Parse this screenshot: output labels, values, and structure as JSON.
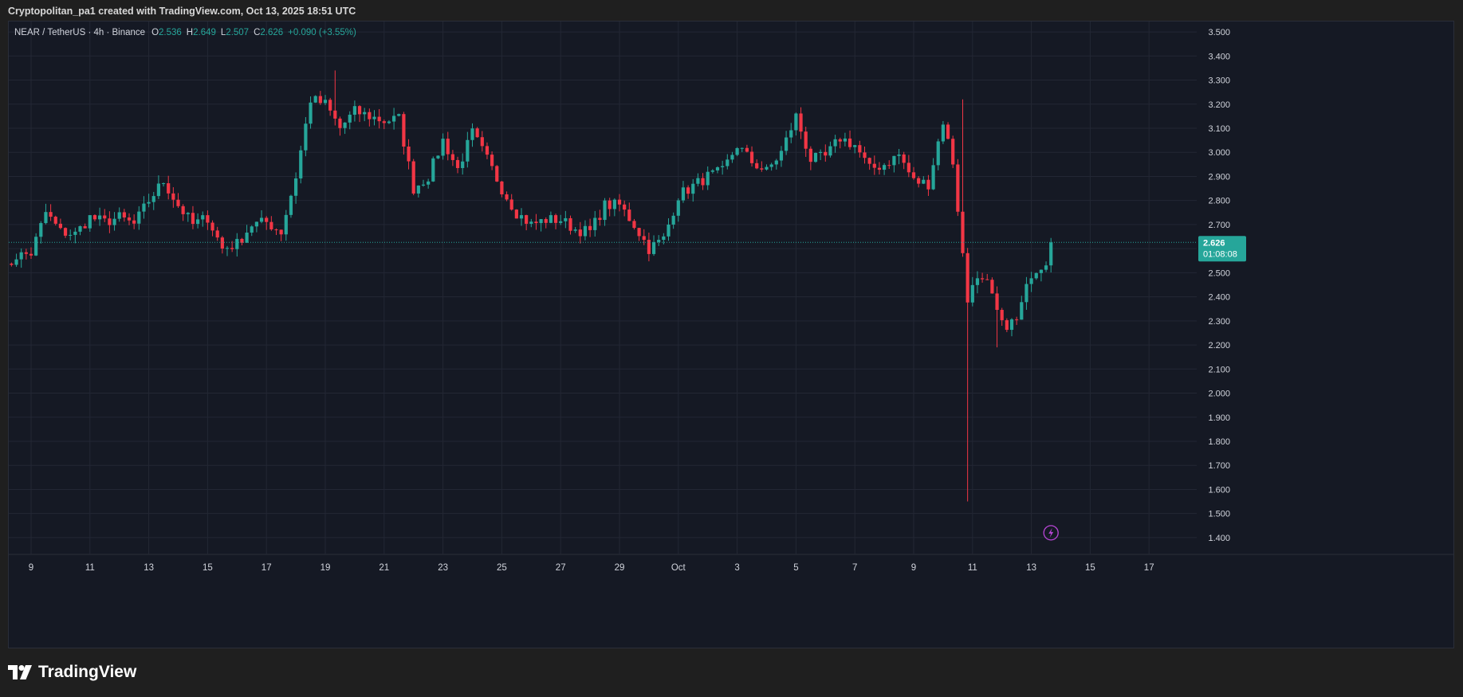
{
  "caption": "Cryptopolitan_pa1 created with TradingView.com, Oct 13, 2025 18:51 UTC",
  "legend": {
    "symbol": "NEAR / TetherUS · 4h · Binance",
    "o_label": "O",
    "o_value": "2.536",
    "h_label": "H",
    "h_value": "2.649",
    "l_label": "L",
    "l_value": "2.507",
    "c_label": "C",
    "c_value": "2.626",
    "change": "+0.090 (+3.55%)"
  },
  "price_tag": {
    "price": "2.626",
    "countdown": "01:08:08"
  },
  "brand": "TradingView",
  "colors": {
    "up": "#26a69a",
    "down": "#f23645",
    "background": "#151924",
    "grid": "#232734",
    "axis_text": "#d1d4dc",
    "lightning": "#b845d6"
  },
  "icons": [
    "tradingview-logo-icon",
    "lightning-icon"
  ],
  "chart_data": {
    "type": "candlestick",
    "title": "",
    "interval": "4h",
    "x_ticks": [
      "9",
      "11",
      "13",
      "15",
      "17",
      "19",
      "21",
      "23",
      "25",
      "27",
      "29",
      "Oct",
      "3",
      "5",
      "7",
      "9",
      "11",
      "13",
      "15",
      "17"
    ],
    "y_ticks": [
      "3.500",
      "3.400",
      "3.300",
      "3.200",
      "3.100",
      "3.000",
      "2.900",
      "2.800",
      "2.700",
      "2.600",
      "2.500",
      "2.400",
      "2.300",
      "2.200",
      "2.100",
      "2.000",
      "1.900",
      "1.800",
      "1.700",
      "1.600",
      "1.500",
      "1.400"
    ],
    "ylim": [
      1.36,
      3.53
    ],
    "x_range_days": [
      "Sep 8",
      "Oct 19"
    ],
    "last_price": 2.626,
    "grid": true,
    "anchors": [
      [
        "Sep 8 00:00",
        2.49
      ],
      [
        "Sep 8 12:00",
        2.57
      ],
      [
        "Sep 9 00:00",
        2.58
      ],
      [
        "Sep 9 12:00",
        2.75
      ],
      [
        "Sep 10 00:00",
        2.67
      ],
      [
        "Sep 10 12:00",
        2.66
      ],
      [
        "Sep 11 00:00",
        2.73
      ],
      [
        "Sep 11 12:00",
        2.71
      ],
      [
        "Sep 12 00:00",
        2.73
      ],
      [
        "Sep 12 12:00",
        2.7
      ],
      [
        "Sep 13 00:00",
        2.8
      ],
      [
        "Sep 13 12:00",
        2.88
      ],
      [
        "Sep 14 00:00",
        2.78
      ],
      [
        "Sep 14 12:00",
        2.7
      ],
      [
        "Sep 15 00:00",
        2.73
      ],
      [
        "Sep 15 12:00",
        2.6
      ],
      [
        "Sep 16 00:00",
        2.62
      ],
      [
        "Sep 16 12:00",
        2.7
      ],
      [
        "Sep 17 00:00",
        2.71
      ],
      [
        "Sep 17 12:00",
        2.67
      ],
      [
        "Sep 18 00:00",
        2.9
      ],
      [
        "Sep 18 12:00",
        3.22
      ],
      [
        "Sep 19 00:00",
        3.2
      ],
      [
        "Sep 19 12:00",
        3.1
      ],
      [
        "Sep 20 00:00",
        3.17
      ],
      [
        "Sep 20 12:00",
        3.15
      ],
      [
        "Sep 21 00:00",
        3.13
      ],
      [
        "Sep 21 12:00",
        3.14
      ],
      [
        "Sep 22 00:00",
        2.85
      ],
      [
        "Sep 22 12:00",
        2.9
      ],
      [
        "Sep 23 00:00",
        3.05
      ],
      [
        "Sep 23 12:00",
        2.93
      ],
      [
        "Sep 24 00:00",
        3.08
      ],
      [
        "Sep 24 12:00",
        2.97
      ],
      [
        "Sep 25 00:00",
        2.85
      ],
      [
        "Sep 25 12:00",
        2.75
      ],
      [
        "Sep 26 00:00",
        2.7
      ],
      [
        "Sep 26 12:00",
        2.72
      ],
      [
        "Sep 27 00:00",
        2.72
      ],
      [
        "Sep 27 12:00",
        2.68
      ],
      [
        "Sep 28 00:00",
        2.67
      ],
      [
        "Sep 28 12:00",
        2.78
      ],
      [
        "Sep 29 00:00",
        2.78
      ],
      [
        "Sep 29 12:00",
        2.7
      ],
      [
        "Sep 30 00:00",
        2.6
      ],
      [
        "Sep 30 12:00",
        2.64
      ],
      [
        "Oct 1 00:00",
        2.82
      ],
      [
        "Oct 1 12:00",
        2.86
      ],
      [
        "Oct 2 00:00",
        2.9
      ],
      [
        "Oct 2 12:00",
        2.92
      ],
      [
        "Oct 3 00:00",
        3.03
      ],
      [
        "Oct 3 12:00",
        2.96
      ],
      [
        "Oct 4 00:00",
        2.92
      ],
      [
        "Oct 4 12:00",
        3.0
      ],
      [
        "Oct 5 00:00",
        3.15
      ],
      [
        "Oct 5 12:00",
        2.97
      ],
      [
        "Oct 6 00:00",
        2.98
      ],
      [
        "Oct 6 12:00",
        3.06
      ],
      [
        "Oct 7 00:00",
        3.03
      ],
      [
        "Oct 7 12:00",
        2.93
      ],
      [
        "Oct 8 00:00",
        2.95
      ],
      [
        "Oct 8 12:00",
        2.99
      ],
      [
        "Oct 9 00:00",
        2.88
      ],
      [
        "Oct 9 12:00",
        2.87
      ],
      [
        "Oct 10 00:00",
        3.13
      ],
      [
        "Oct 10 08:00",
        2.96
      ],
      [
        "Oct 10 20:00",
        2.38
      ],
      [
        "Oct 11 00:00",
        2.47
      ],
      [
        "Oct 11 12:00",
        2.45
      ],
      [
        "Oct 12 00:00",
        2.28
      ],
      [
        "Oct 12 12:00",
        2.3
      ],
      [
        "Oct 13 00:00",
        2.5
      ],
      [
        "Oct 13 12:00",
        2.55
      ],
      [
        "Oct 13 16:00",
        2.626
      ]
    ]
  }
}
